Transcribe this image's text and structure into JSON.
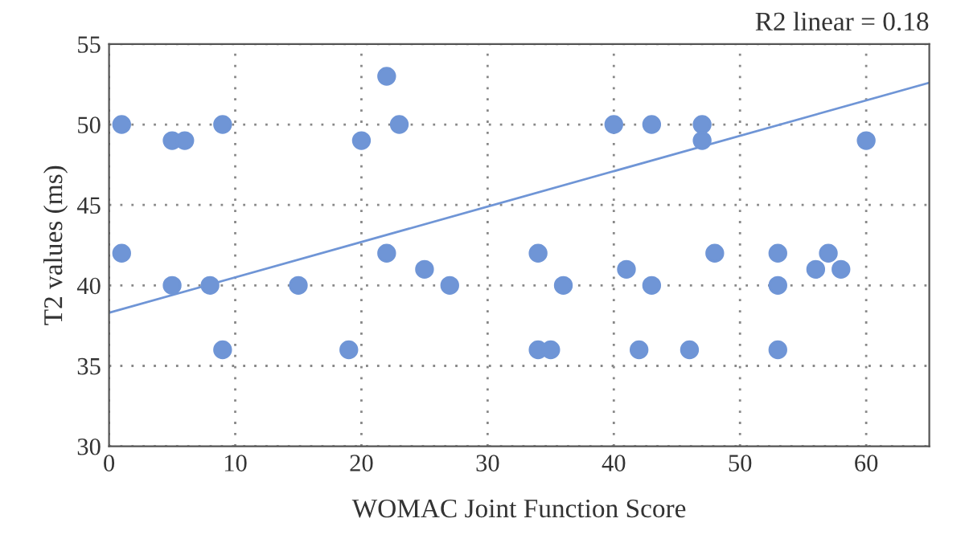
{
  "chart_data": {
    "type": "scatter",
    "xlabel": "WOMAC Joint Function Score",
    "ylabel": "T2 values (ms)",
    "annotations": [
      "R2 linear = 0.18"
    ],
    "xlim": [
      0,
      65
    ],
    "ylim": [
      30,
      55
    ],
    "xticks": [
      0,
      10,
      20,
      30,
      40,
      50,
      60
    ],
    "yticks": [
      30,
      35,
      40,
      45,
      50,
      55
    ],
    "grid": true,
    "marker": "circle",
    "series": [
      {
        "color": "#6f95d6",
        "x": [
          1,
          5,
          6,
          9,
          1,
          5,
          8,
          9,
          15,
          19,
          20,
          22,
          23,
          22,
          25,
          27,
          34,
          34,
          35,
          36,
          40,
          43,
          47,
          47,
          41,
          43,
          42,
          46,
          48,
          53,
          53,
          53,
          56,
          57,
          58,
          60
        ],
        "values": [
          50,
          49,
          49,
          50,
          42,
          40,
          40,
          36,
          40,
          36,
          49,
          53,
          50,
          42,
          41,
          40,
          42,
          36,
          36,
          40,
          50,
          50,
          50,
          49,
          41,
          40,
          36,
          36,
          42,
          42,
          40,
          36,
          41,
          42,
          41,
          49
        ]
      },
      {
        "type": "line",
        "color": "#6f95d6",
        "x": [
          0,
          65
        ],
        "values": [
          38.3,
          52.6
        ],
        "marker": "none",
        "line_style": "solid"
      }
    ]
  }
}
